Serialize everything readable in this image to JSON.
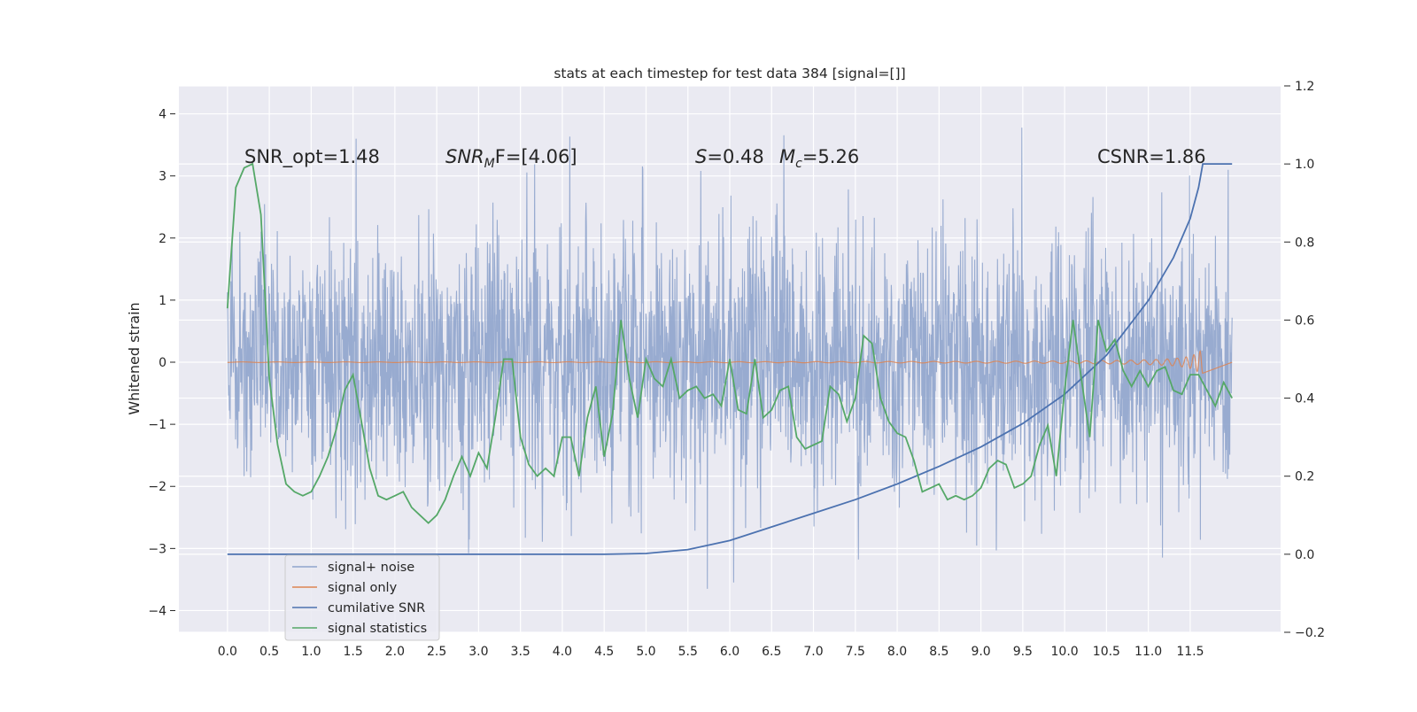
{
  "chart_data": {
    "type": "line",
    "title": "stats at each timestep for test data 384 [signal=[]]",
    "ylabel": "Whitened strain",
    "xlabel": "",
    "xlim": [
      -0.58,
      12.58
    ],
    "ylim": [
      -4.35,
      4.45
    ],
    "y2lim": [
      -0.2,
      1.2
    ],
    "x_ticks": [
      "0.0",
      "0.5",
      "1.0",
      "1.5",
      "2.0",
      "2.5",
      "3.0",
      "3.5",
      "4.0",
      "4.5",
      "5.0",
      "5.5",
      "6.0",
      "6.5",
      "7.0",
      "7.5",
      "8.0",
      "8.5",
      "9.0",
      "9.5",
      "10.0",
      "10.5",
      "11.0",
      "11.5"
    ],
    "y_ticks": [
      "4",
      "3",
      "2",
      "1",
      "0",
      "−1",
      "−2",
      "−3",
      "−4"
    ],
    "y2_ticks": [
      "1.2",
      "1.0",
      "0.8",
      "0.6",
      "0.4",
      "0.2",
      "0.0",
      "−0.2"
    ],
    "grid": true,
    "legend_position": "lower-left",
    "annotations": {
      "snr_opt": "SNR_opt=1.48",
      "snr_mf": "SNR",
      "snr_mf_sub": "M",
      "snr_mf_rest": "F=[4.06]",
      "s_label": "S",
      "s_rest": "=0.48",
      "mc_label": "M",
      "mc_sub": "c",
      "mc_rest": "=5.26",
      "csnr": "CSNR=1.86"
    },
    "series": [
      {
        "name": "signal+ noise",
        "color": "#8fa4cc",
        "description": "whitened noise, std≈1, range approx −3.9..4.1, x 0..12"
      },
      {
        "name": "signal only",
        "color": "#dd8452",
        "description": "near-zero chirp growing to ±0.15 near x≈11.6"
      },
      {
        "name": "cumilative SNR",
        "color": "#4c72b0",
        "axis": "right",
        "x": [
          0,
          1,
          2,
          3,
          4,
          4.5,
          5,
          5.5,
          6,
          6.5,
          7,
          7.5,
          8,
          8.5,
          9,
          9.5,
          10,
          10.5,
          11,
          11.3,
          11.5,
          11.6,
          11.65,
          12
        ],
        "values": [
          0,
          0,
          0,
          0,
          0,
          0,
          0.002,
          0.012,
          0.035,
          0.07,
          0.105,
          0.14,
          0.18,
          0.225,
          0.275,
          0.335,
          0.41,
          0.51,
          0.65,
          0.76,
          0.86,
          0.94,
          1.0,
          1.0
        ]
      },
      {
        "name": "signal statistics",
        "color": "#55a868",
        "axis": "right",
        "x": [
          0,
          0.1,
          0.2,
          0.3,
          0.4,
          0.5,
          0.6,
          0.7,
          0.8,
          0.9,
          1.0,
          1.1,
          1.2,
          1.3,
          1.4,
          1.5,
          1.6,
          1.7,
          1.8,
          1.9,
          2.0,
          2.1,
          2.2,
          2.3,
          2.4,
          2.5,
          2.6,
          2.7,
          2.8,
          2.9,
          3.0,
          3.1,
          3.2,
          3.3,
          3.4,
          3.5,
          3.6,
          3.7,
          3.8,
          3.9,
          4.0,
          4.1,
          4.2,
          4.3,
          4.4,
          4.5,
          4.6,
          4.7,
          4.8,
          4.9,
          5.0,
          5.1,
          5.2,
          5.3,
          5.4,
          5.5,
          5.6,
          5.7,
          5.8,
          5.9,
          6.0,
          6.1,
          6.2,
          6.3,
          6.4,
          6.5,
          6.6,
          6.7,
          6.8,
          6.9,
          7.0,
          7.1,
          7.2,
          7.3,
          7.4,
          7.5,
          7.6,
          7.7,
          7.8,
          7.9,
          8.0,
          8.1,
          8.2,
          8.3,
          8.4,
          8.5,
          8.6,
          8.7,
          8.8,
          8.9,
          9.0,
          9.1,
          9.2,
          9.3,
          9.4,
          9.5,
          9.6,
          9.7,
          9.8,
          9.9,
          10.0,
          10.1,
          10.2,
          10.3,
          10.4,
          10.5,
          10.6,
          10.7,
          10.8,
          10.9,
          11.0,
          11.1,
          11.2,
          11.3,
          11.4,
          11.5,
          11.6,
          11.7,
          11.8,
          11.9,
          12.0
        ],
        "values": [
          0.63,
          0.94,
          0.99,
          1.0,
          0.87,
          0.45,
          0.28,
          0.18,
          0.16,
          0.15,
          0.16,
          0.2,
          0.25,
          0.32,
          0.42,
          0.46,
          0.34,
          0.22,
          0.15,
          0.14,
          0.15,
          0.16,
          0.12,
          0.1,
          0.08,
          0.1,
          0.14,
          0.2,
          0.25,
          0.2,
          0.26,
          0.22,
          0.35,
          0.5,
          0.5,
          0.3,
          0.23,
          0.2,
          0.22,
          0.2,
          0.3,
          0.3,
          0.2,
          0.35,
          0.43,
          0.25,
          0.36,
          0.6,
          0.45,
          0.35,
          0.5,
          0.45,
          0.43,
          0.5,
          0.4,
          0.42,
          0.43,
          0.4,
          0.41,
          0.38,
          0.5,
          0.37,
          0.36,
          0.5,
          0.35,
          0.37,
          0.42,
          0.43,
          0.3,
          0.27,
          0.28,
          0.29,
          0.43,
          0.41,
          0.34,
          0.4,
          0.56,
          0.54,
          0.4,
          0.34,
          0.31,
          0.3,
          0.24,
          0.16,
          0.17,
          0.18,
          0.14,
          0.15,
          0.14,
          0.15,
          0.17,
          0.22,
          0.24,
          0.23,
          0.17,
          0.18,
          0.2,
          0.28,
          0.33,
          0.2,
          0.42,
          0.6,
          0.45,
          0.3,
          0.6,
          0.52,
          0.55,
          0.47,
          0.43,
          0.47,
          0.43,
          0.47,
          0.48,
          0.42,
          0.41,
          0.46,
          0.46,
          0.42,
          0.38,
          0.44,
          0.4
        ]
      }
    ]
  }
}
